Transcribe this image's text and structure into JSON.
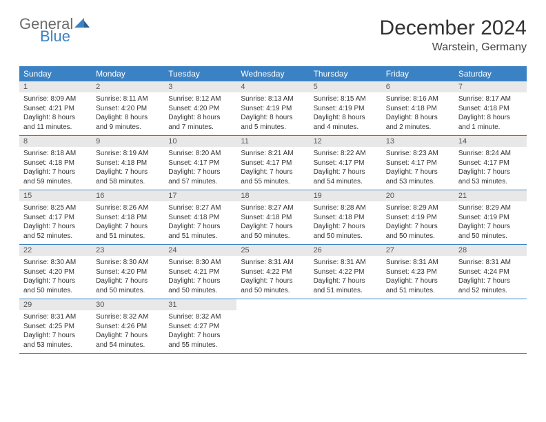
{
  "logo": {
    "general": "General",
    "blue": "Blue",
    "accent_color": "#3b82c4",
    "gray": "#6b6b6b"
  },
  "header": {
    "month": "December 2024",
    "location": "Warstein, Germany"
  },
  "colors": {
    "header_bg": "#3b82c4",
    "daynum_bg": "#e8e8e8",
    "row_border": "#3b82c4",
    "text": "#333333"
  },
  "weekdays": [
    "Sunday",
    "Monday",
    "Tuesday",
    "Wednesday",
    "Thursday",
    "Friday",
    "Saturday"
  ],
  "start_offset": 0,
  "days": [
    {
      "n": 1,
      "sunrise": "8:09 AM",
      "sunset": "4:21 PM",
      "daylight": "8 hours and 11 minutes."
    },
    {
      "n": 2,
      "sunrise": "8:11 AM",
      "sunset": "4:20 PM",
      "daylight": "8 hours and 9 minutes."
    },
    {
      "n": 3,
      "sunrise": "8:12 AM",
      "sunset": "4:20 PM",
      "daylight": "8 hours and 7 minutes."
    },
    {
      "n": 4,
      "sunrise": "8:13 AM",
      "sunset": "4:19 PM",
      "daylight": "8 hours and 5 minutes."
    },
    {
      "n": 5,
      "sunrise": "8:15 AM",
      "sunset": "4:19 PM",
      "daylight": "8 hours and 4 minutes."
    },
    {
      "n": 6,
      "sunrise": "8:16 AM",
      "sunset": "4:18 PM",
      "daylight": "8 hours and 2 minutes."
    },
    {
      "n": 7,
      "sunrise": "8:17 AM",
      "sunset": "4:18 PM",
      "daylight": "8 hours and 1 minute."
    },
    {
      "n": 8,
      "sunrise": "8:18 AM",
      "sunset": "4:18 PM",
      "daylight": "7 hours and 59 minutes."
    },
    {
      "n": 9,
      "sunrise": "8:19 AM",
      "sunset": "4:18 PM",
      "daylight": "7 hours and 58 minutes."
    },
    {
      "n": 10,
      "sunrise": "8:20 AM",
      "sunset": "4:17 PM",
      "daylight": "7 hours and 57 minutes."
    },
    {
      "n": 11,
      "sunrise": "8:21 AM",
      "sunset": "4:17 PM",
      "daylight": "7 hours and 55 minutes."
    },
    {
      "n": 12,
      "sunrise": "8:22 AM",
      "sunset": "4:17 PM",
      "daylight": "7 hours and 54 minutes."
    },
    {
      "n": 13,
      "sunrise": "8:23 AM",
      "sunset": "4:17 PM",
      "daylight": "7 hours and 53 minutes."
    },
    {
      "n": 14,
      "sunrise": "8:24 AM",
      "sunset": "4:17 PM",
      "daylight": "7 hours and 53 minutes."
    },
    {
      "n": 15,
      "sunrise": "8:25 AM",
      "sunset": "4:17 PM",
      "daylight": "7 hours and 52 minutes."
    },
    {
      "n": 16,
      "sunrise": "8:26 AM",
      "sunset": "4:18 PM",
      "daylight": "7 hours and 51 minutes."
    },
    {
      "n": 17,
      "sunrise": "8:27 AM",
      "sunset": "4:18 PM",
      "daylight": "7 hours and 51 minutes."
    },
    {
      "n": 18,
      "sunrise": "8:27 AM",
      "sunset": "4:18 PM",
      "daylight": "7 hours and 50 minutes."
    },
    {
      "n": 19,
      "sunrise": "8:28 AM",
      "sunset": "4:18 PM",
      "daylight": "7 hours and 50 minutes."
    },
    {
      "n": 20,
      "sunrise": "8:29 AM",
      "sunset": "4:19 PM",
      "daylight": "7 hours and 50 minutes."
    },
    {
      "n": 21,
      "sunrise": "8:29 AM",
      "sunset": "4:19 PM",
      "daylight": "7 hours and 50 minutes."
    },
    {
      "n": 22,
      "sunrise": "8:30 AM",
      "sunset": "4:20 PM",
      "daylight": "7 hours and 50 minutes."
    },
    {
      "n": 23,
      "sunrise": "8:30 AM",
      "sunset": "4:20 PM",
      "daylight": "7 hours and 50 minutes."
    },
    {
      "n": 24,
      "sunrise": "8:30 AM",
      "sunset": "4:21 PM",
      "daylight": "7 hours and 50 minutes."
    },
    {
      "n": 25,
      "sunrise": "8:31 AM",
      "sunset": "4:22 PM",
      "daylight": "7 hours and 50 minutes."
    },
    {
      "n": 26,
      "sunrise": "8:31 AM",
      "sunset": "4:22 PM",
      "daylight": "7 hours and 51 minutes."
    },
    {
      "n": 27,
      "sunrise": "8:31 AM",
      "sunset": "4:23 PM",
      "daylight": "7 hours and 51 minutes."
    },
    {
      "n": 28,
      "sunrise": "8:31 AM",
      "sunset": "4:24 PM",
      "daylight": "7 hours and 52 minutes."
    },
    {
      "n": 29,
      "sunrise": "8:31 AM",
      "sunset": "4:25 PM",
      "daylight": "7 hours and 53 minutes."
    },
    {
      "n": 30,
      "sunrise": "8:32 AM",
      "sunset": "4:26 PM",
      "daylight": "7 hours and 54 minutes."
    },
    {
      "n": 31,
      "sunrise": "8:32 AM",
      "sunset": "4:27 PM",
      "daylight": "7 hours and 55 minutes."
    }
  ],
  "labels": {
    "sunrise": "Sunrise:",
    "sunset": "Sunset:",
    "daylight": "Daylight:"
  }
}
